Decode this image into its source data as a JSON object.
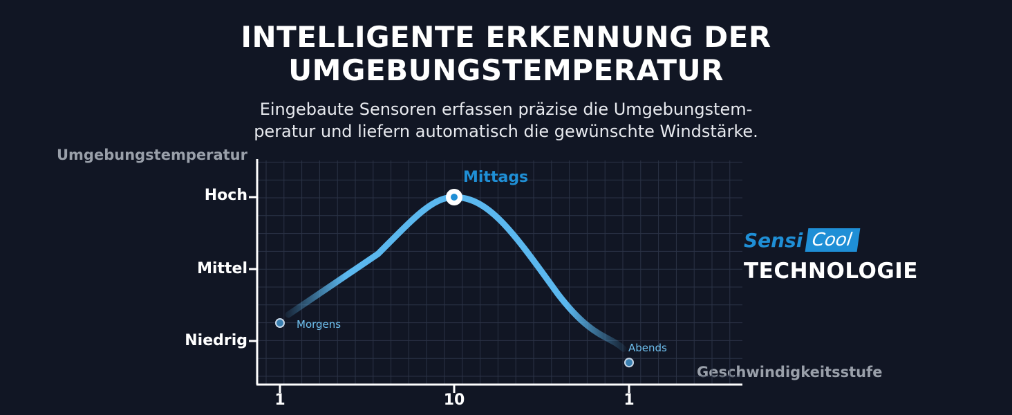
{
  "header": {
    "title_line1": "INTELLIGENTE ERKENNUNG DER",
    "title_line2": "UMGEBUNGSTEMPERATUR",
    "subtitle_line1": "Eingebaute Sensoren erfassen präzise die Umgebungstem-",
    "subtitle_line2": "peratur und liefern automatisch die gewünschte Windstärke."
  },
  "brand": {
    "sensi": "Sensi",
    "cool": "Cool",
    "technology": "TECHNOLOGIE",
    "accent_color": "#1f8fd6"
  },
  "chart_data": {
    "type": "line",
    "title": "",
    "ylabel": "Umgebungstemperatur",
    "xlabel": "Geschwindigkeitsstufe",
    "y_ticks": [
      "Niedrig",
      "Mittel",
      "Hoch"
    ],
    "x_ticks": [
      "1",
      "10",
      "1"
    ],
    "grid": true,
    "series": [
      {
        "points": [
          {
            "label": "Morgens",
            "x_tick": "1",
            "level": 0.25
          },
          {
            "label": "Mittags",
            "x_tick": "10",
            "level": 2.0
          },
          {
            "label": "Abends",
            "x_tick": "1",
            "level": -0.3
          }
        ],
        "color": "#5bb8ef"
      }
    ]
  }
}
